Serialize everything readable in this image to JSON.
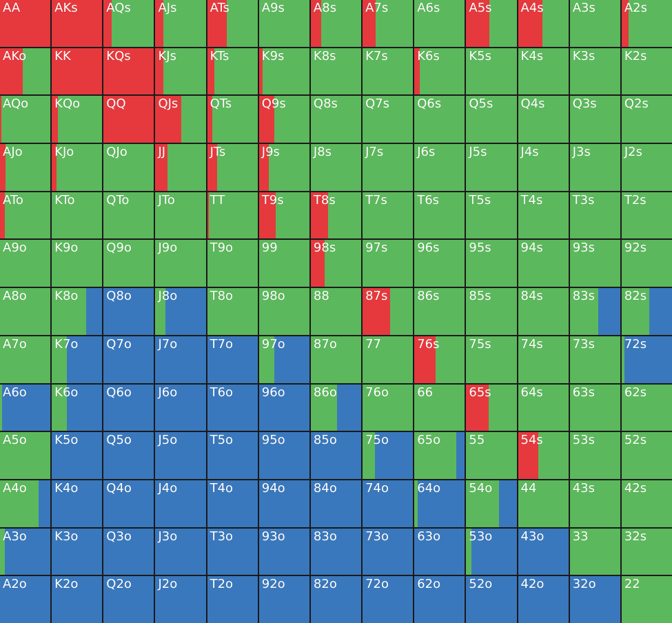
{
  "chart_data": {
    "type": "heatmap",
    "title": "",
    "colors": {
      "raise": "#e5393d",
      "call": "#5cb85c",
      "fold": "#3a78bd"
    },
    "action_order": [
      "raise",
      "call",
      "fold"
    ],
    "rows": [
      [
        [
          "AA",
          1,
          0,
          0
        ],
        [
          "AKs",
          1,
          0,
          0
        ],
        [
          "AQs",
          0.16,
          0.84,
          0
        ],
        [
          "AJs",
          0.16,
          0.84,
          0
        ],
        [
          "ATs",
          0.39,
          0.61,
          0
        ],
        [
          "A9s",
          0,
          1,
          0
        ],
        [
          "A8s",
          0.2,
          0.8,
          0
        ],
        [
          "A7s",
          0.26,
          0.74,
          0
        ],
        [
          "A6s",
          0,
          1,
          0
        ],
        [
          "A5s",
          0.46,
          0.54,
          0
        ],
        [
          "A4s",
          0.49,
          0.51,
          0
        ],
        [
          "A3s",
          0,
          1,
          0
        ],
        [
          "A2s",
          0.14,
          0.86,
          0
        ]
      ],
      [
        [
          "AKo",
          0.45,
          0.55,
          0
        ],
        [
          "KK",
          1,
          0,
          0
        ],
        [
          "KQs",
          1,
          0,
          0
        ],
        [
          "KJs",
          0.16,
          0.84,
          0
        ],
        [
          "KTs",
          0.14,
          0.86,
          0
        ],
        [
          "K9s",
          0.07,
          0.93,
          0
        ],
        [
          "K8s",
          0,
          1,
          0
        ],
        [
          "K7s",
          0,
          1,
          0
        ],
        [
          "K6s",
          0.1,
          0.9,
          0
        ],
        [
          "K5s",
          0,
          1,
          0
        ],
        [
          "K4s",
          0,
          1,
          0
        ],
        [
          "K3s",
          0,
          1,
          0
        ],
        [
          "K2s",
          0,
          1,
          0
        ]
      ],
      [
        [
          "AQo",
          0.03,
          0.97,
          0
        ],
        [
          "KQo",
          0.12,
          0.88,
          0
        ],
        [
          "QQ",
          1,
          0,
          0
        ],
        [
          "QJs",
          0.52,
          0.48,
          0
        ],
        [
          "QTs",
          0.1,
          0.9,
          0
        ],
        [
          "Q9s",
          0.3,
          0.7,
          0
        ],
        [
          "Q8s",
          0,
          1,
          0
        ],
        [
          "Q7s",
          0,
          1,
          0
        ],
        [
          "Q6s",
          0,
          1,
          0
        ],
        [
          "Q5s",
          0,
          1,
          0
        ],
        [
          "Q4s",
          0,
          1,
          0
        ],
        [
          "Q3s",
          0,
          1,
          0
        ],
        [
          "Q2s",
          0,
          1,
          0
        ]
      ],
      [
        [
          "AJo",
          0.11,
          0.89,
          0
        ],
        [
          "KJo",
          0.09,
          0.91,
          0
        ],
        [
          "QJo",
          0,
          1,
          0
        ],
        [
          "JJ",
          0.24,
          0.76,
          0
        ],
        [
          "JTs",
          0.2,
          0.8,
          0
        ],
        [
          "J9s",
          0.2,
          0.8,
          0
        ],
        [
          "J8s",
          0,
          1,
          0
        ],
        [
          "J7s",
          0,
          1,
          0
        ],
        [
          "J6s",
          0,
          1,
          0
        ],
        [
          "J5s",
          0,
          1,
          0
        ],
        [
          "J4s",
          0,
          1,
          0
        ],
        [
          "J3s",
          0,
          1,
          0
        ],
        [
          "J2s",
          0,
          1,
          0
        ]
      ],
      [
        [
          "ATo",
          0.1,
          0.9,
          0
        ],
        [
          "KTo",
          0,
          1,
          0
        ],
        [
          "QTo",
          0,
          1,
          0
        ],
        [
          "JTo",
          0,
          1,
          0
        ],
        [
          "TT",
          0.03,
          0.97,
          0
        ],
        [
          "T9s",
          0.33,
          0.67,
          0
        ],
        [
          "T8s",
          0.34,
          0.66,
          0
        ],
        [
          "T7s",
          0,
          1,
          0
        ],
        [
          "T6s",
          0,
          1,
          0
        ],
        [
          "T5s",
          0,
          1,
          0
        ],
        [
          "T4s",
          0,
          1,
          0
        ],
        [
          "T3s",
          0,
          1,
          0
        ],
        [
          "T2s",
          0,
          1,
          0
        ]
      ],
      [
        [
          "A9o",
          0,
          1,
          0
        ],
        [
          "K9o",
          0,
          1,
          0
        ],
        [
          "Q9o",
          0,
          1,
          0
        ],
        [
          "J9o",
          0,
          1,
          0
        ],
        [
          "T9o",
          0,
          1,
          0
        ],
        [
          "99",
          0,
          1,
          0
        ],
        [
          "98s",
          0.28,
          0.72,
          0
        ],
        [
          "97s",
          0,
          1,
          0
        ],
        [
          "96s",
          0,
          1,
          0
        ],
        [
          "95s",
          0,
          1,
          0
        ],
        [
          "94s",
          0,
          1,
          0
        ],
        [
          "93s",
          0,
          1,
          0
        ],
        [
          "92s",
          0,
          1,
          0
        ]
      ],
      [
        [
          "A8o",
          0,
          1,
          0
        ],
        [
          "K8o",
          0,
          0.68,
          0.32
        ],
        [
          "Q8o",
          0,
          0,
          1
        ],
        [
          "J8o",
          0,
          0.2,
          0.8
        ],
        [
          "T8o",
          0,
          1,
          0
        ],
        [
          "98o",
          0,
          1,
          0
        ],
        [
          "88",
          0,
          1,
          0
        ],
        [
          "87s",
          0.54,
          0.46,
          0
        ],
        [
          "86s",
          0,
          1,
          0
        ],
        [
          "85s",
          0,
          1,
          0
        ],
        [
          "84s",
          0,
          1,
          0
        ],
        [
          "83s",
          0,
          0.57,
          0.43
        ],
        [
          "82s",
          0,
          0.55,
          0.45
        ]
      ],
      [
        [
          "A7o",
          0,
          1,
          0
        ],
        [
          "K7o",
          0,
          0.3,
          0.7
        ],
        [
          "Q7o",
          0,
          0,
          1
        ],
        [
          "J7o",
          0,
          0,
          1
        ],
        [
          "T7o",
          0,
          0,
          1
        ],
        [
          "97o",
          0,
          0.3,
          0.7
        ],
        [
          "87o",
          0,
          1,
          0
        ],
        [
          "77",
          0,
          1,
          0
        ],
        [
          "76s",
          0.42,
          0.58,
          0
        ],
        [
          "75s",
          0,
          1,
          0
        ],
        [
          "74s",
          0,
          1,
          0
        ],
        [
          "73s",
          0,
          1,
          0
        ],
        [
          "72s",
          0,
          0.06,
          0.94
        ]
      ],
      [
        [
          "A6o",
          0,
          0.04,
          0.96
        ],
        [
          "K6o",
          0,
          0.3,
          0.7
        ],
        [
          "Q6o",
          0,
          0,
          1
        ],
        [
          "J6o",
          0,
          0,
          1
        ],
        [
          "T6o",
          0,
          0,
          1
        ],
        [
          "96o",
          0,
          0,
          1
        ],
        [
          "86o",
          0,
          0.52,
          0.48
        ],
        [
          "76o",
          0,
          1,
          0
        ],
        [
          "66",
          0,
          1,
          0
        ],
        [
          "65s",
          0.45,
          0.55,
          0
        ],
        [
          "64s",
          0,
          1,
          0
        ],
        [
          "63s",
          0,
          1,
          0
        ],
        [
          "62s",
          0,
          1,
          0
        ]
      ],
      [
        [
          "A5o",
          0,
          1,
          0
        ],
        [
          "K5o",
          0,
          0,
          1
        ],
        [
          "Q5o",
          0,
          0,
          1
        ],
        [
          "J5o",
          0,
          0,
          1
        ],
        [
          "T5o",
          0,
          0,
          1
        ],
        [
          "95o",
          0,
          0,
          1
        ],
        [
          "85o",
          0,
          0,
          1
        ],
        [
          "75o",
          0,
          0.25,
          0.75
        ],
        [
          "65o",
          0,
          0.83,
          0.17
        ],
        [
          "55",
          0,
          1,
          0
        ],
        [
          "54s",
          0.4,
          0.6,
          0
        ],
        [
          "53s",
          0,
          1,
          0
        ],
        [
          "52s",
          0,
          1,
          0
        ]
      ],
      [
        [
          "A4o",
          0,
          0.77,
          0.23
        ],
        [
          "K4o",
          0,
          0,
          1
        ],
        [
          "Q4o",
          0,
          0,
          1
        ],
        [
          "J4o",
          0,
          0,
          1
        ],
        [
          "T4o",
          0,
          0,
          1
        ],
        [
          "94o",
          0,
          0,
          1
        ],
        [
          "84o",
          0,
          0,
          1
        ],
        [
          "74o",
          0,
          0,
          1
        ],
        [
          "64o",
          0,
          0.06,
          0.94
        ],
        [
          "54o",
          0,
          0.65,
          0.35
        ],
        [
          "44",
          0,
          1,
          0
        ],
        [
          "43s",
          0,
          1,
          0
        ],
        [
          "42s",
          0,
          1,
          0
        ]
      ],
      [
        [
          "A3o",
          0,
          0.1,
          0.9
        ],
        [
          "K3o",
          0,
          0,
          1
        ],
        [
          "Q3o",
          0,
          0,
          1
        ],
        [
          "J3o",
          0,
          0,
          1
        ],
        [
          "T3o",
          0,
          0,
          1
        ],
        [
          "93o",
          0,
          0,
          1
        ],
        [
          "83o",
          0,
          0,
          1
        ],
        [
          "73o",
          0,
          0,
          1
        ],
        [
          "63o",
          0,
          0,
          1
        ],
        [
          "53o",
          0,
          0.1,
          0.9
        ],
        [
          "43o",
          0,
          0,
          1
        ],
        [
          "33",
          0,
          1,
          0
        ],
        [
          "32s",
          0,
          1,
          0
        ]
      ],
      [
        [
          "A2o",
          0,
          0,
          1
        ],
        [
          "K2o",
          0,
          0,
          1
        ],
        [
          "Q2o",
          0,
          0,
          1
        ],
        [
          "J2o",
          0,
          0,
          1
        ],
        [
          "T2o",
          0,
          0,
          1
        ],
        [
          "92o",
          0,
          0,
          1
        ],
        [
          "82o",
          0,
          0,
          1
        ],
        [
          "72o",
          0,
          0,
          1
        ],
        [
          "62o",
          0,
          0,
          1
        ],
        [
          "52o",
          0,
          0,
          1
        ],
        [
          "42o",
          0,
          0,
          1
        ],
        [
          "32o",
          0,
          0,
          1
        ],
        [
          "22",
          0,
          1,
          0
        ]
      ]
    ]
  }
}
